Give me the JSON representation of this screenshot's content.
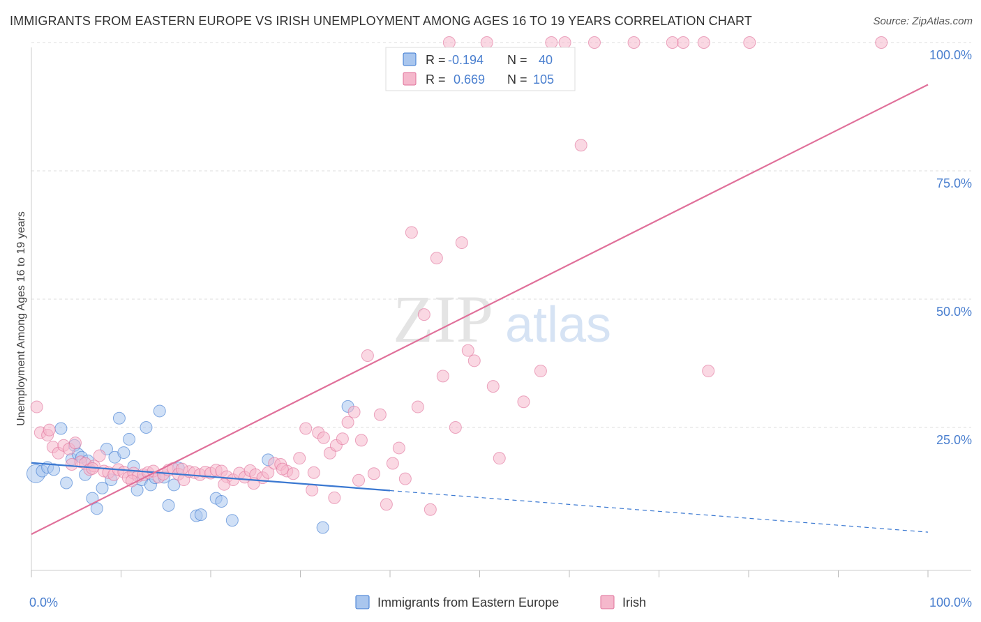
{
  "title": "IMMIGRANTS FROM EASTERN EUROPE VS IRISH UNEMPLOYMENT AMONG AGES 16 TO 19 YEARS CORRELATION CHART",
  "source": "Source: ZipAtlas.com",
  "watermark": {
    "zip": "ZIP",
    "atlas": "atlas"
  },
  "colors": {
    "blue": "#3a78d1",
    "blue_fill": "#a9c6ee",
    "pink": "#e0709a",
    "pink_fill": "#f5b8cc",
    "tick_label": "#4a7fcf",
    "grid": "#dddddd"
  },
  "legend_top": [
    {
      "r_label": "R = ",
      "r_value": "-0.194",
      "n_label": "N = ",
      "n_value": "40",
      "color": "blue"
    },
    {
      "r_label": "R = ",
      "r_value": "0.669",
      "n_label": "N = ",
      "n_value": "105",
      "color": "pink"
    }
  ],
  "legend_bottom": [
    {
      "label": "Immigrants from Eastern Europe",
      "color": "blue"
    },
    {
      "label": "Irish",
      "color": "pink"
    }
  ],
  "chart_data": {
    "type": "scatter",
    "ylabel": "Unemployment Among Ages 16 to 19 years",
    "xlabel": "",
    "xlim": [
      0,
      100
    ],
    "ylim": [
      0,
      100
    ],
    "x_tick_labels": [
      {
        "value": 0,
        "label": "0.0%"
      },
      {
        "value": 100,
        "label": "100.0%"
      }
    ],
    "y_tick_labels": [
      {
        "value": 25,
        "label": "25.0%"
      },
      {
        "value": 50,
        "label": "50.0%"
      },
      {
        "value": 75,
        "label": "75.0%"
      },
      {
        "value": 100,
        "label": "100.0%"
      }
    ],
    "series": [
      {
        "name": "Immigrants from Eastern Europe",
        "color": "blue",
        "points": [
          [
            0.5,
            16.0
          ],
          [
            1.2,
            16.5
          ],
          [
            1.8,
            17.2
          ],
          [
            2.5,
            16.8
          ],
          [
            3.3,
            24.8
          ],
          [
            3.9,
            14.2
          ],
          [
            4.5,
            18.8
          ],
          [
            4.8,
            21.5
          ],
          [
            5.2,
            19.8
          ],
          [
            5.6,
            19.2
          ],
          [
            6.0,
            15.8
          ],
          [
            6.3,
            18.5
          ],
          [
            6.8,
            11.2
          ],
          [
            7.3,
            9.2
          ],
          [
            7.9,
            13.2
          ],
          [
            8.4,
            20.8
          ],
          [
            8.9,
            14.8
          ],
          [
            9.3,
            19.2
          ],
          [
            9.8,
            26.8
          ],
          [
            10.3,
            20.1
          ],
          [
            10.9,
            22.7
          ],
          [
            11.4,
            17.4
          ],
          [
            11.8,
            12.8
          ],
          [
            12.3,
            14.8
          ],
          [
            12.8,
            25.0
          ],
          [
            13.3,
            13.8
          ],
          [
            13.8,
            15.2
          ],
          [
            14.3,
            28.2
          ],
          [
            14.8,
            15.3
          ],
          [
            15.3,
            9.8
          ],
          [
            15.9,
            13.8
          ],
          [
            16.4,
            17.1
          ],
          [
            18.4,
            7.8
          ],
          [
            18.9,
            8.0
          ],
          [
            20.6,
            11.2
          ],
          [
            21.2,
            10.6
          ],
          [
            22.4,
            6.9
          ],
          [
            26.4,
            18.7
          ],
          [
            32.5,
            5.5
          ],
          [
            35.3,
            29.1
          ]
        ]
      },
      {
        "name": "Irish",
        "color": "pink",
        "points": [
          [
            0.6,
            29.0
          ],
          [
            1.0,
            24.0
          ],
          [
            1.8,
            23.5
          ],
          [
            2.4,
            21.2
          ],
          [
            3.0,
            20.0
          ],
          [
            3.6,
            21.5
          ],
          [
            4.2,
            20.8
          ],
          [
            4.5,
            17.8
          ],
          [
            4.9,
            22.0
          ],
          [
            5.5,
            18.3
          ],
          [
            6.0,
            18.0
          ],
          [
            6.5,
            16.8
          ],
          [
            7.0,
            17.5
          ],
          [
            7.6,
            19.5
          ],
          [
            8.1,
            16.5
          ],
          [
            8.6,
            16.2
          ],
          [
            9.2,
            15.8
          ],
          [
            9.7,
            16.8
          ],
          [
            10.3,
            16.3
          ],
          [
            10.8,
            15.2
          ],
          [
            11.4,
            16.1
          ],
          [
            11.9,
            15.5
          ],
          [
            12.5,
            15.8
          ],
          [
            13.0,
            16.2
          ],
          [
            13.6,
            16.5
          ],
          [
            14.2,
            15.3
          ],
          [
            14.7,
            15.9
          ],
          [
            15.3,
            16.7
          ],
          [
            15.8,
            17.0
          ],
          [
            16.4,
            15.9
          ],
          [
            17.0,
            14.8
          ],
          [
            17.6,
            16.4
          ],
          [
            18.2,
            16.2
          ],
          [
            18.8,
            15.8
          ],
          [
            19.4,
            16.3
          ],
          [
            20.0,
            16.1
          ],
          [
            20.6,
            16.7
          ],
          [
            21.2,
            16.5
          ],
          [
            21.8,
            15.4
          ],
          [
            22.5,
            14.8
          ],
          [
            23.2,
            16.1
          ],
          [
            23.8,
            15.3
          ],
          [
            24.4,
            16.6
          ],
          [
            25.0,
            15.8
          ],
          [
            25.8,
            15.2
          ],
          [
            26.4,
            16.2
          ],
          [
            27.1,
            18.0
          ],
          [
            27.8,
            17.8
          ],
          [
            28.5,
            16.5
          ],
          [
            29.2,
            16.0
          ],
          [
            29.9,
            19.0
          ],
          [
            30.6,
            24.8
          ],
          [
            31.3,
            12.8
          ],
          [
            32.0,
            24.0
          ],
          [
            32.6,
            23.0
          ],
          [
            33.3,
            20.0
          ],
          [
            34.0,
            21.5
          ],
          [
            34.7,
            22.8
          ],
          [
            35.3,
            26.0
          ],
          [
            36.0,
            28.0
          ],
          [
            36.8,
            22.5
          ],
          [
            37.5,
            39.0
          ],
          [
            38.2,
            16.0
          ],
          [
            38.9,
            27.5
          ],
          [
            39.6,
            10.0
          ],
          [
            40.3,
            18.0
          ],
          [
            41.0,
            21.0
          ],
          [
            41.7,
            15.0
          ],
          [
            42.4,
            63.0
          ],
          [
            43.1,
            29.0
          ],
          [
            43.8,
            47.0
          ],
          [
            44.5,
            9.0
          ],
          [
            45.2,
            58.0
          ],
          [
            45.9,
            35.0
          ],
          [
            46.6,
            100.0
          ],
          [
            47.3,
            25.0
          ],
          [
            48.0,
            61.0
          ],
          [
            48.7,
            40.0
          ],
          [
            49.4,
            38.0
          ],
          [
            50.8,
            100.0
          ],
          [
            51.5,
            33.0
          ],
          [
            52.2,
            19.0
          ],
          [
            54.9,
            30.0
          ],
          [
            56.8,
            36.0
          ],
          [
            58.0,
            100.0
          ],
          [
            59.5,
            100.0
          ],
          [
            61.3,
            80.0
          ],
          [
            62.8,
            100.0
          ],
          [
            67.2,
            100.0
          ],
          [
            71.5,
            100.0
          ],
          [
            72.7,
            100.0
          ],
          [
            75.0,
            100.0
          ],
          [
            75.5,
            36.0
          ],
          [
            80.1,
            100.0
          ],
          [
            94.8,
            100.0
          ],
          [
            2.0,
            24.5
          ],
          [
            6.8,
            17.0
          ],
          [
            11.2,
            14.6
          ],
          [
            16.8,
            16.9
          ],
          [
            21.5,
            13.9
          ],
          [
            24.8,
            14.1
          ],
          [
            28.0,
            16.9
          ],
          [
            31.5,
            16.2
          ],
          [
            33.8,
            11.3
          ],
          [
            36.5,
            14.7
          ]
        ]
      }
    ],
    "trend_lines": [
      {
        "series": "Immigrants from Eastern Europe",
        "solid": [
          [
            0,
            18.1
          ],
          [
            40,
            12.7
          ]
        ],
        "dashed": [
          [
            40,
            12.7
          ],
          [
            100,
            4.6
          ]
        ]
      },
      {
        "series": "Irish",
        "solid": [
          [
            0,
            4.2
          ],
          [
            100,
            91.8
          ]
        ]
      }
    ],
    "grid": true,
    "legend_placement": "top-center and bottom-center"
  }
}
